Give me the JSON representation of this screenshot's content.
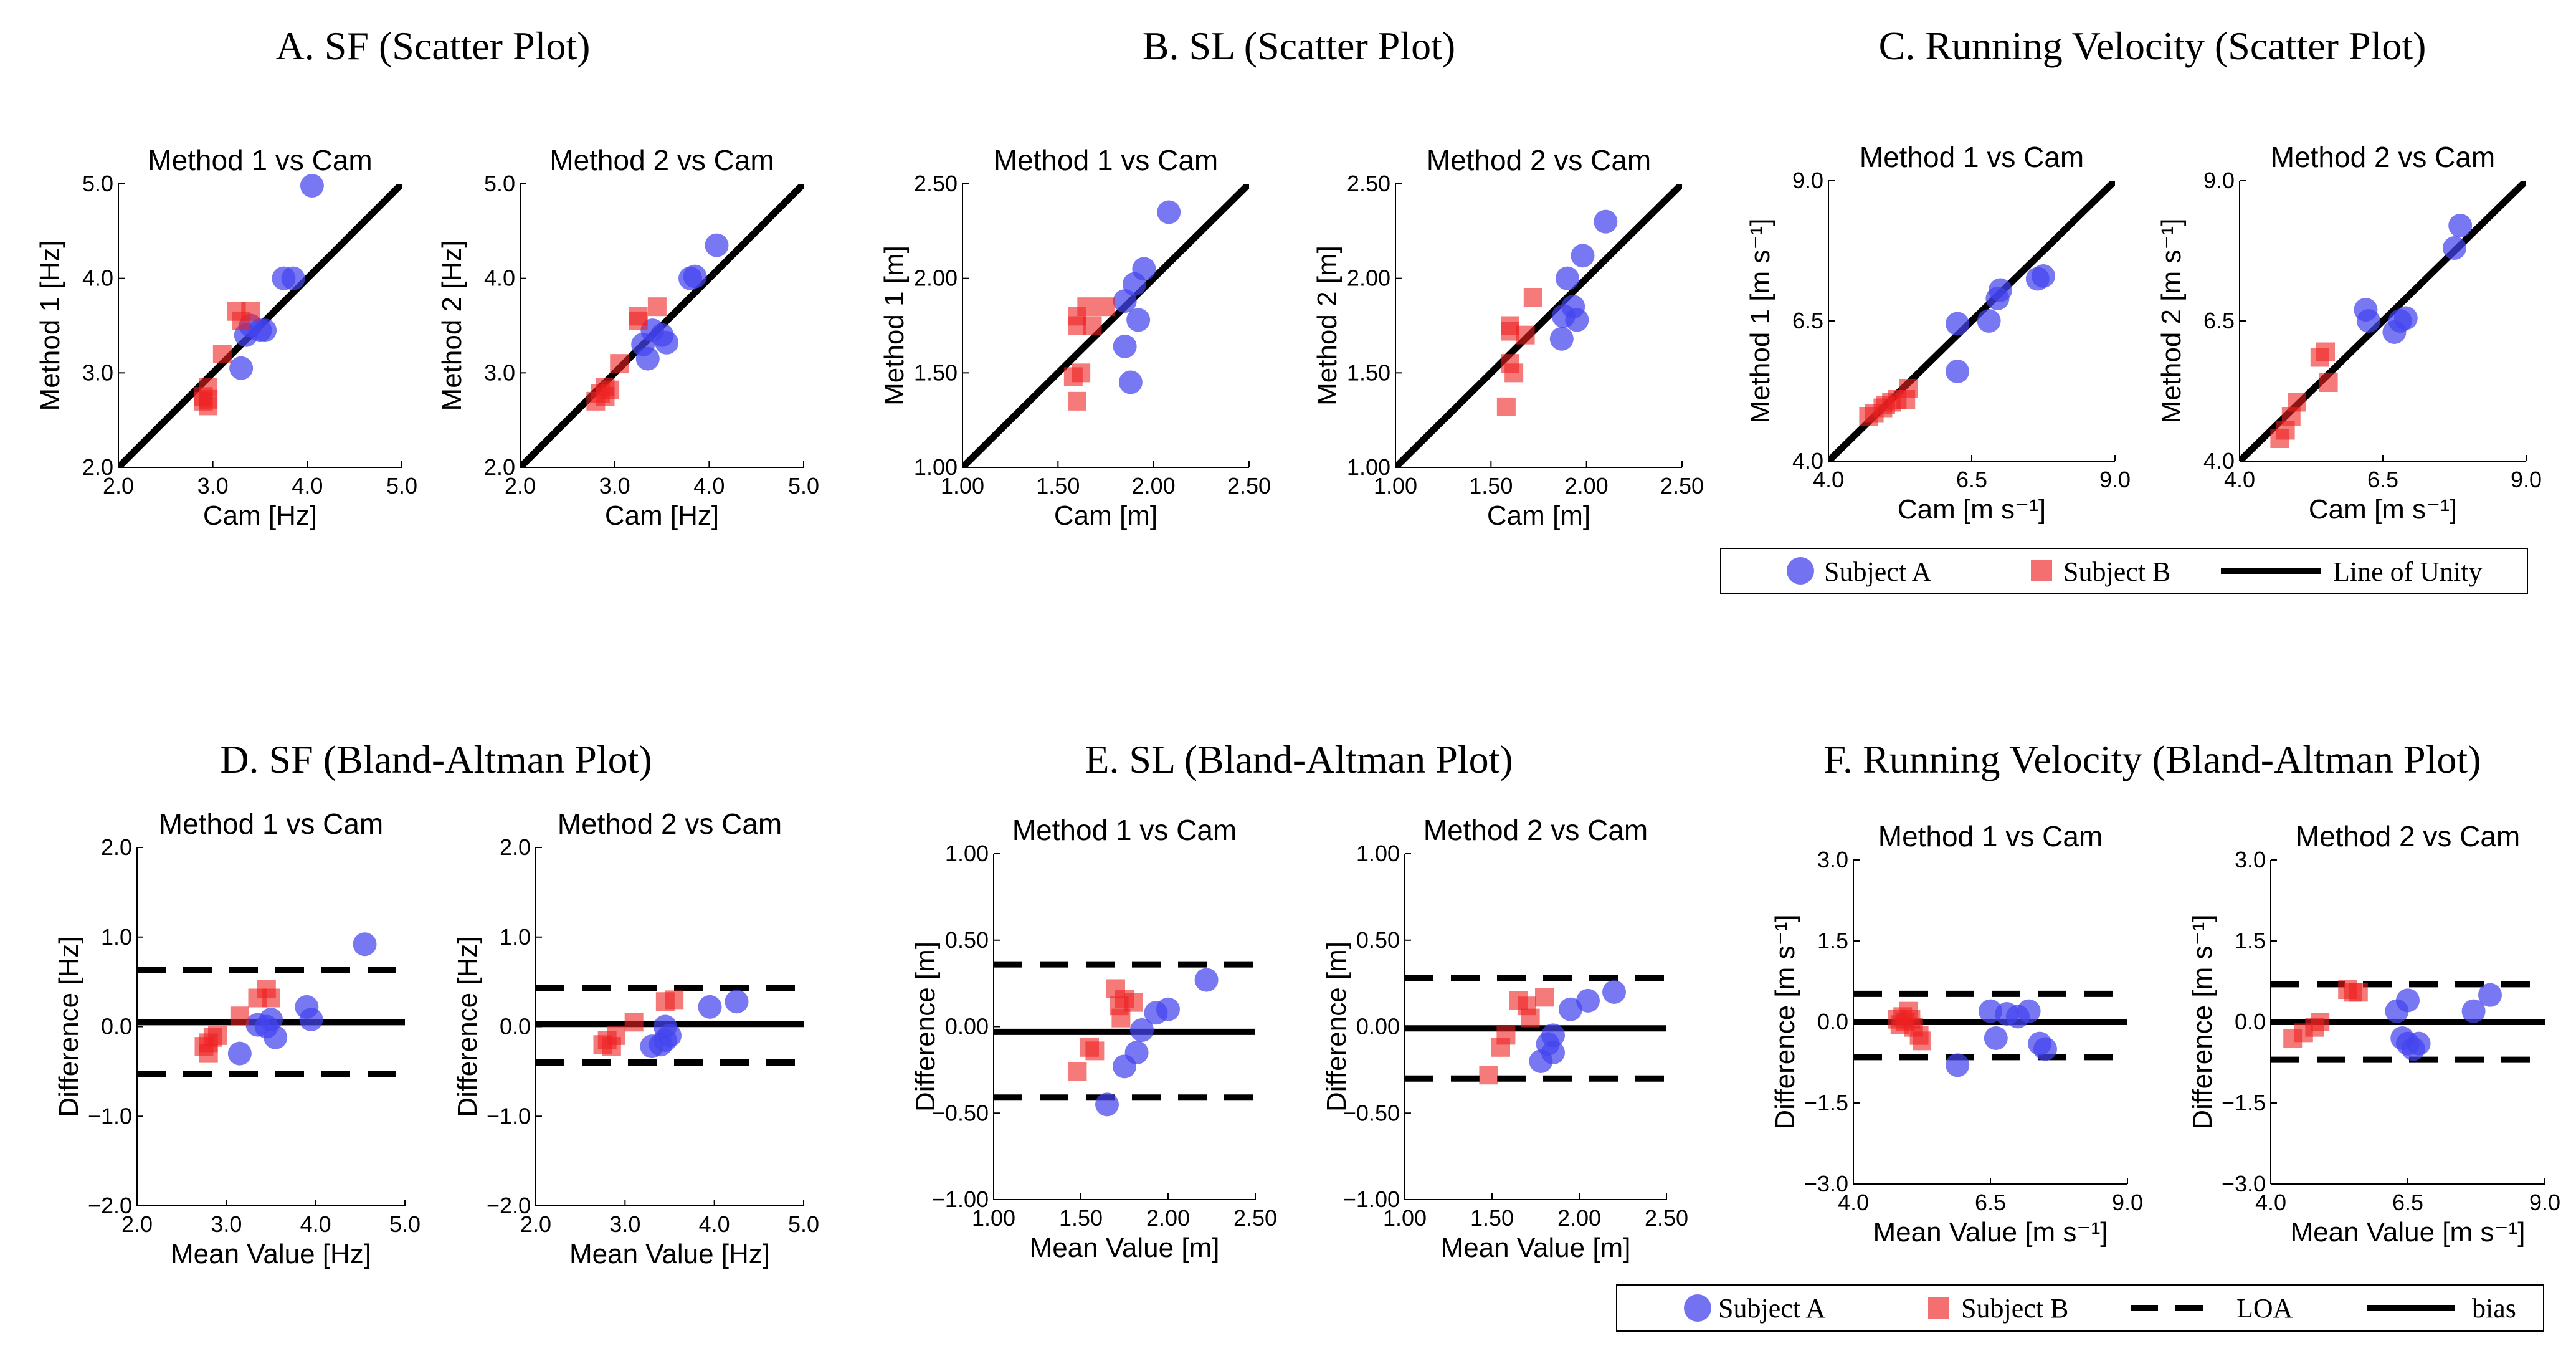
{
  "colors": {
    "subject_a": "#4444ee",
    "subject_b": "#ee2222",
    "line": "#000000"
  },
  "scatter_legend": {
    "subject_a": "Subject A",
    "subject_b": "Subject B",
    "unity": "Line of Unity"
  },
  "ba_legend": {
    "subject_a": "Subject A",
    "subject_b": "Subject B",
    "loa": "LOA",
    "bias": "bias"
  },
  "chart_data": [
    {
      "type": "scatter",
      "section_title": "A. SF (Scatter Plot)",
      "panels": [
        {
          "title": "Method 1 vs Cam",
          "xlabel": "Cam [Hz]",
          "ylabel": "Method 1 [Hz]",
          "xlim": [
            2.0,
            5.0
          ],
          "ylim": [
            2.0,
            5.0
          ],
          "xticks": [
            "2.0",
            "3.0",
            "4.0",
            "5.0"
          ],
          "yticks": [
            "2.0",
            "3.0",
            "4.0",
            "5.0"
          ],
          "unity_line": [
            2.0,
            5.0
          ],
          "series": [
            {
              "name": "Subject A",
              "x": [
                4.05,
                3.75,
                3.85,
                3.4,
                3.55,
                3.5,
                3.35,
                3.3
              ],
              "y": [
                4.98,
                4.0,
                4.0,
                3.5,
                3.45,
                3.45,
                3.4,
                3.05
              ]
            },
            {
              "name": "Subject B",
              "x": [
                3.25,
                3.4,
                3.3,
                3.1,
                2.95,
                2.9,
                2.95,
                2.9,
                2.95
              ],
              "y": [
                3.65,
                3.65,
                3.55,
                3.2,
                2.85,
                2.75,
                2.72,
                2.7,
                2.65
              ]
            }
          ]
        },
        {
          "title": "Method 2 vs Cam",
          "xlabel": "Cam [Hz]",
          "ylabel": "Method 2 [Hz]",
          "xlim": [
            2.0,
            5.0
          ],
          "ylim": [
            2.0,
            5.0
          ],
          "xticks": [
            "2.0",
            "3.0",
            "4.0",
            "5.0"
          ],
          "yticks": [
            "2.0",
            "3.0",
            "4.0",
            "5.0"
          ],
          "unity_line": [
            2.0,
            5.0
          ],
          "series": [
            {
              "name": "Subject A",
              "x": [
                4.08,
                3.85,
                3.8,
                3.4,
                3.5,
                3.55,
                3.3,
                3.35
              ],
              "y": [
                4.35,
                4.02,
                4.0,
                3.45,
                3.4,
                3.32,
                3.3,
                3.15
              ]
            },
            {
              "name": "Subject B",
              "x": [
                3.25,
                3.45,
                3.25,
                3.05,
                2.9,
                2.85,
                2.95,
                2.8,
                2.9
              ],
              "y": [
                3.6,
                3.7,
                3.55,
                3.1,
                2.85,
                2.78,
                2.82,
                2.7,
                2.75
              ]
            }
          ]
        }
      ]
    },
    {
      "type": "scatter",
      "section_title": "B. SL (Scatter Plot)",
      "panels": [
        {
          "title": "Method 1 vs Cam",
          "xlabel": "Cam [m]",
          "ylabel": "Method 1 [m]",
          "xlim": [
            1.0,
            2.5
          ],
          "ylim": [
            1.0,
            2.5
          ],
          "xticks": [
            "1.00",
            "1.50",
            "2.00",
            "2.50"
          ],
          "yticks": [
            "1.00",
            "1.50",
            "2.00",
            "2.50"
          ],
          "unity_line": [
            1.0,
            2.5
          ],
          "series": [
            {
              "name": "Subject A",
              "x": [
                2.08,
                1.95,
                1.9,
                1.85,
                1.92,
                1.85,
                1.88
              ],
              "y": [
                2.35,
                2.05,
                1.97,
                1.88,
                1.78,
                1.64,
                1.45
              ]
            },
            {
              "name": "Subject B",
              "x": [
                1.6,
                1.65,
                1.6,
                1.75,
                1.68,
                1.62,
                1.58,
                1.6
              ],
              "y": [
                1.8,
                1.85,
                1.75,
                1.85,
                1.75,
                1.5,
                1.48,
                1.35
              ]
            }
          ]
        },
        {
          "title": "Method 2 vs Cam",
          "xlabel": "Cam [m]",
          "ylabel": "Method 2 [m]",
          "xlim": [
            1.0,
            2.5
          ],
          "ylim": [
            1.0,
            2.5
          ],
          "xticks": [
            "1.00",
            "1.50",
            "2.00",
            "2.50"
          ],
          "yticks": [
            "1.00",
            "1.50",
            "2.00",
            "2.50"
          ],
          "unity_line": [
            1.0,
            2.5
          ],
          "series": [
            {
              "name": "Subject A",
              "x": [
                2.1,
                1.98,
                1.9,
                1.93,
                1.88,
                1.95,
                1.87
              ],
              "y": [
                2.3,
                2.12,
                2.0,
                1.85,
                1.8,
                1.78,
                1.68
              ]
            },
            {
              "name": "Subject B",
              "x": [
                1.72,
                1.6,
                1.6,
                1.68,
                1.6,
                1.62,
                1.58
              ],
              "y": [
                1.9,
                1.75,
                1.72,
                1.7,
                1.55,
                1.5,
                1.32
              ]
            }
          ]
        }
      ]
    },
    {
      "type": "scatter",
      "section_title": "C. Running Velocity (Scatter Plot)",
      "panels": [
        {
          "title": "Method 1 vs Cam",
          "xlabel": "Cam [m s⁻¹]",
          "ylabel": "Method 1 [m s⁻¹]",
          "xlim": [
            4.0,
            9.0
          ],
          "ylim": [
            4.0,
            9.0
          ],
          "xticks": [
            "4.0",
            "6.5",
            "9.0"
          ],
          "yticks": [
            "4.0",
            "6.5",
            "9.0"
          ],
          "unity_line": [
            4.0,
            9.0
          ],
          "series": [
            {
              "name": "Subject A",
              "x": [
                7.75,
                7.65,
                7.0,
                6.95,
                6.8,
                6.25,
                6.25
              ],
              "y": [
                7.3,
                7.25,
                7.05,
                6.9,
                6.5,
                6.45,
                5.6
              ]
            },
            {
              "name": "Subject B",
              "x": [
                5.4,
                5.2,
                5.0,
                4.95,
                4.8,
                4.7,
                5.35,
                5.1
              ],
              "y": [
                5.3,
                5.1,
                5.0,
                4.95,
                4.85,
                4.8,
                5.1,
                5.05
              ]
            }
          ]
        },
        {
          "title": "Method 2 vs Cam",
          "xlabel": "Cam [m s⁻¹]",
          "ylabel": "Method 2 [m s⁻¹]",
          "xlim": [
            4.0,
            9.0
          ],
          "ylim": [
            4.0,
            9.0
          ],
          "xticks": [
            "4.0",
            "6.5",
            "9.0"
          ],
          "yticks": [
            "4.0",
            "6.5",
            "9.0"
          ],
          "unity_line": [
            4.0,
            9.0
          ],
          "series": [
            {
              "name": "Subject A",
              "x": [
                7.85,
                7.75,
                6.2,
                6.25,
                6.9,
                6.8,
                6.7
              ],
              "y": [
                8.2,
                7.8,
                6.7,
                6.5,
                6.55,
                6.5,
                6.3
              ]
            },
            {
              "name": "Subject B",
              "x": [
                5.5,
                5.4,
                5.55,
                5.0,
                4.9,
                4.8,
                4.7
              ],
              "y": [
                5.95,
                5.85,
                5.4,
                5.05,
                4.8,
                4.55,
                4.4
              ]
            }
          ]
        }
      ]
    },
    {
      "type": "scatter",
      "section_title": "D. SF (Bland-Altman Plot)",
      "panels": [
        {
          "title": "Method 1 vs Cam",
          "xlabel": "Mean Value [Hz]",
          "ylabel": "Difference [Hz]",
          "xlim": [
            2.0,
            5.0
          ],
          "ylim": [
            -2.0,
            2.0
          ],
          "xticks": [
            "2.0",
            "3.0",
            "4.0",
            "5.0"
          ],
          "yticks": [
            "-2.0",
            "-1.0",
            "0.0",
            "1.0",
            "2.0"
          ],
          "bias": 0.05,
          "loa": [
            -0.53,
            0.63
          ],
          "series": [
            {
              "name": "Subject A",
              "x": [
                4.55,
                3.9,
                3.95,
                3.5,
                3.45,
                3.55,
                3.35,
                3.15
              ],
              "y": [
                0.92,
                0.22,
                0.08,
                0.08,
                0.0,
                -0.12,
                0.02,
                -0.3
              ]
            },
            {
              "name": "Subject B",
              "x": [
                3.45,
                3.35,
                3.5,
                3.15,
                2.85,
                2.8,
                2.75,
                2.8,
                2.9
              ],
              "y": [
                0.42,
                0.32,
                0.32,
                0.12,
                -0.12,
                -0.18,
                -0.22,
                -0.3,
                -0.1
              ]
            }
          ]
        },
        {
          "title": "Method 2 vs Cam",
          "xlabel": "Mean Value [Hz]",
          "ylabel": "Difference [Hz]",
          "xlim": [
            2.0,
            5.0
          ],
          "ylim": [
            -2.0,
            2.0
          ],
          "xticks": [
            "2.0",
            "3.0",
            "4.0",
            "5.0"
          ],
          "yticks": [
            "-2.0",
            "-1.0",
            "0.0",
            "1.0",
            "2.0"
          ],
          "bias": 0.03,
          "loa": [
            -0.4,
            0.43
          ],
          "series": [
            {
              "name": "Subject A",
              "x": [
                4.25,
                3.95,
                3.5,
                3.45,
                3.4,
                3.3,
                3.45
              ],
              "y": [
                0.28,
                0.22,
                -0.1,
                -0.15,
                -0.2,
                -0.22,
                0.0
              ]
            },
            {
              "name": "Subject B",
              "x": [
                3.55,
                3.45,
                3.1,
                2.9,
                2.8,
                2.75,
                2.85
              ],
              "y": [
                0.3,
                0.28,
                0.05,
                -0.1,
                -0.15,
                -0.2,
                -0.22
              ]
            }
          ]
        }
      ]
    },
    {
      "type": "scatter",
      "section_title": "E. SL (Bland-Altman Plot)",
      "panels": [
        {
          "title": "Method 1 vs Cam",
          "xlabel": "Mean Value [m]",
          "ylabel": "Difference [m]",
          "xlim": [
            1.0,
            2.5
          ],
          "ylim": [
            -1.0,
            1.0
          ],
          "xticks": [
            "1.00",
            "1.50",
            "2.00",
            "2.50"
          ],
          "yticks": [
            "-1.00",
            "-0.50",
            "0.00",
            "0.50",
            "1.00"
          ],
          "bias": -0.03,
          "loa": [
            -0.41,
            0.36
          ],
          "series": [
            {
              "name": "Subject A",
              "x": [
                2.22,
                2.0,
                1.93,
                1.85,
                1.82,
                1.75,
                1.65
              ],
              "y": [
                0.27,
                0.1,
                0.08,
                -0.02,
                -0.15,
                -0.23,
                -0.45
              ]
            },
            {
              "name": "Subject B",
              "x": [
                1.7,
                1.75,
                1.8,
                1.72,
                1.73,
                1.55,
                1.58,
                1.48
              ],
              "y": [
                0.22,
                0.16,
                0.14,
                0.12,
                0.05,
                -0.12,
                -0.14,
                -0.26
              ]
            }
          ]
        },
        {
          "title": "Method 2 vs Cam",
          "xlabel": "Mean Value [m]",
          "ylabel": "Difference [m]",
          "xlim": [
            1.0,
            2.5
          ],
          "ylim": [
            -1.0,
            1.0
          ],
          "xticks": [
            "1.00",
            "1.50",
            "2.00",
            "2.50"
          ],
          "yticks": [
            "-1.00",
            "-0.50",
            "0.00",
            "0.50",
            "1.00"
          ],
          "bias": -0.01,
          "loa": [
            -0.3,
            0.28
          ],
          "series": [
            {
              "name": "Subject A",
              "x": [
                2.2,
                2.05,
                1.95,
                1.85,
                1.82,
                1.78,
                1.85
              ],
              "y": [
                0.2,
                0.15,
                0.1,
                -0.05,
                -0.1,
                -0.2,
                -0.15
              ]
            },
            {
              "name": "Subject B",
              "x": [
                1.8,
                1.65,
                1.72,
                1.7,
                1.58,
                1.55,
                1.48
              ],
              "y": [
                0.17,
                0.15,
                0.05,
                0.12,
                -0.05,
                -0.12,
                -0.28
              ]
            }
          ]
        }
      ]
    },
    {
      "type": "scatter",
      "section_title": "F. Running Velocity (Bland-Altman Plot)",
      "panels": [
        {
          "title": "Method 1 vs Cam",
          "xlabel": "Mean Value [m s⁻¹]",
          "ylabel": "Difference [m s⁻¹]",
          "xlim": [
            4.0,
            9.0
          ],
          "ylim": [
            -3.0,
            3.0
          ],
          "xticks": [
            "4.0",
            "6.5",
            "9.0"
          ],
          "yticks": [
            "-3.0",
            "-1.5",
            "0.0",
            "1.5",
            "3.0"
          ],
          "bias": 0.0,
          "loa": [
            -0.65,
            0.52
          ],
          "series": [
            {
              "name": "Subject A",
              "x": [
                7.2,
                7.0,
                6.8,
                6.5,
                6.6,
                7.5,
                7.4,
                5.9
              ],
              "y": [
                0.2,
                0.1,
                0.15,
                0.2,
                -0.3,
                -0.5,
                -0.4,
                -0.8
              ]
            },
            {
              "name": "Subject B",
              "x": [
                5.0,
                4.9,
                5.05,
                4.95,
                4.85,
                5.1,
                5.2,
                5.25,
                4.8
              ],
              "y": [
                0.2,
                0.1,
                0.05,
                0.0,
                -0.05,
                -0.1,
                -0.25,
                -0.35,
                0.05
              ]
            }
          ]
        },
        {
          "title": "Method 2 vs Cam",
          "xlabel": "Mean Value [m s⁻¹]",
          "ylabel": "Difference [m s⁻¹]",
          "xlim": [
            4.0,
            9.0
          ],
          "ylim": [
            -3.0,
            3.0
          ],
          "xticks": [
            "4.0",
            "6.5",
            "9.0"
          ],
          "yticks": [
            "-3.0",
            "-1.5",
            "0.0",
            "1.5",
            "3.0"
          ],
          "bias": 0.0,
          "loa": [
            -0.7,
            0.7
          ],
          "series": [
            {
              "name": "Subject A",
              "x": [
                8.0,
                7.7,
                6.5,
                6.3,
                6.4,
                6.7,
                6.6,
                6.5
              ],
              "y": [
                0.5,
                0.2,
                0.4,
                0.2,
                -0.3,
                -0.4,
                -0.5,
                -0.4
              ]
            },
            {
              "name": "Subject B",
              "x": [
                5.6,
                5.4,
                5.5,
                4.9,
                4.6,
                4.4,
                4.8
              ],
              "y": [
                0.55,
                0.6,
                0.55,
                0.0,
                -0.2,
                -0.3,
                -0.1
              ]
            }
          ]
        }
      ]
    }
  ]
}
